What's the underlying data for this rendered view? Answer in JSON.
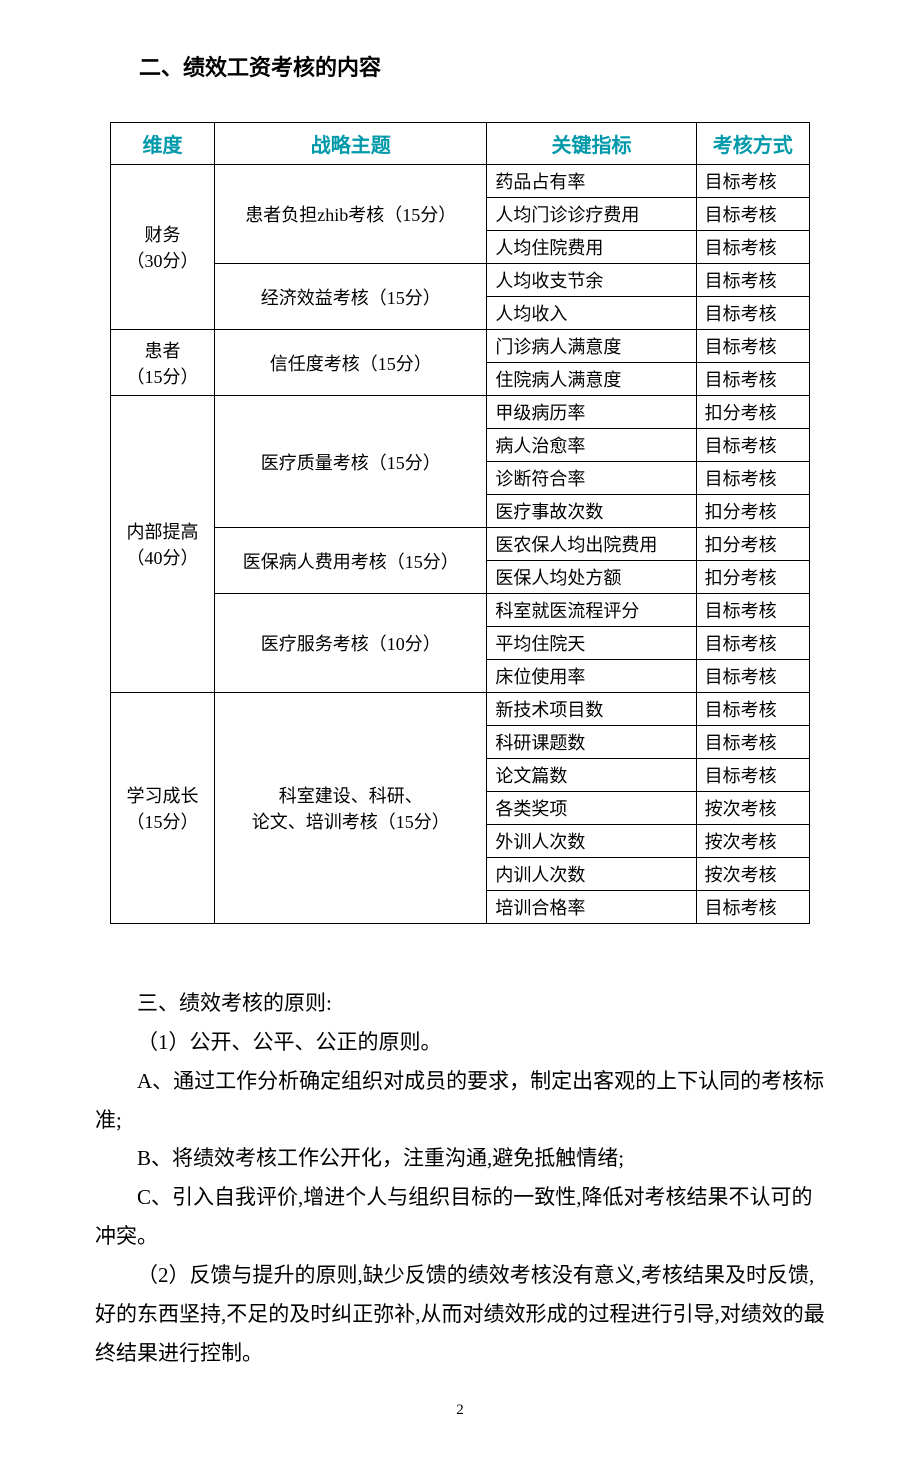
{
  "section2_title": "二、绩效工资考核的内容",
  "table": {
    "headers": [
      "维度",
      "战略主题",
      "关键指标",
      "考核方式"
    ],
    "header_color": "#0099aa",
    "groups": [
      {
        "dim": "财务\n（30分）",
        "themes": [
          {
            "theme": "患者负担zhib考核（15分）",
            "rows": [
              {
                "ind": "药品占有率",
                "mode": "目标考核"
              },
              {
                "ind": "人均门诊诊疗费用",
                "mode": "目标考核"
              },
              {
                "ind": "人均住院费用",
                "mode": "目标考核"
              }
            ]
          },
          {
            "theme": "经济效益考核（15分）",
            "rows": [
              {
                "ind": "人均收支节余",
                "mode": "目标考核"
              },
              {
                "ind": "人均收入",
                "mode": "目标考核"
              }
            ]
          }
        ]
      },
      {
        "dim": "患者\n（15分）",
        "themes": [
          {
            "theme": "信任度考核（15分）",
            "rows": [
              {
                "ind": "门诊病人满意度",
                "mode": "目标考核"
              },
              {
                "ind": "住院病人满意度",
                "mode": "目标考核"
              }
            ]
          }
        ]
      },
      {
        "dim": "内部提高\n（40分）",
        "themes": [
          {
            "theme": "医疗质量考核（15分）",
            "rows": [
              {
                "ind": "甲级病历率",
                "mode": "扣分考核"
              },
              {
                "ind": "病人治愈率",
                "mode": "目标考核"
              },
              {
                "ind": "诊断符合率",
                "mode": "目标考核"
              },
              {
                "ind": "医疗事故次数",
                "mode": "扣分考核"
              }
            ]
          },
          {
            "theme": "医保病人费用考核（15分）",
            "rows": [
              {
                "ind": "医农保人均出院费用",
                "mode": "扣分考核"
              },
              {
                "ind": "医保人均处方额",
                "mode": "扣分考核"
              }
            ]
          },
          {
            "theme": "医疗服务考核（10分）",
            "rows": [
              {
                "ind": "科室就医流程评分",
                "mode": "目标考核"
              },
              {
                "ind": "平均住院天",
                "mode": "目标考核"
              },
              {
                "ind": "床位使用率",
                "mode": "目标考核"
              }
            ]
          }
        ]
      },
      {
        "dim": "学习成长\n（15分）",
        "themes": [
          {
            "theme": "科室建设、科研、\n论文、培训考核（15分）",
            "rows": [
              {
                "ind": "新技术项目数",
                "mode": "目标考核"
              },
              {
                "ind": "科研课题数",
                "mode": "目标考核"
              },
              {
                "ind": "论文篇数",
                "mode": "目标考核"
              },
              {
                "ind": "各类奖项",
                "mode": "按次考核"
              },
              {
                "ind": "外训人次数",
                "mode": "按次考核"
              },
              {
                "ind": "内训人次数",
                "mode": "按次考核"
              },
              {
                "ind": "培训合格率",
                "mode": "目标考核"
              }
            ]
          }
        ]
      }
    ]
  },
  "section3_title": "三、绩效考核的原则:",
  "paragraphs": [
    "（1）公开、公平、公正的原则。",
    "A、通过工作分析确定组织对成员的要求，制定出客观的上下认同的考核标准;",
    "B、将绩效考核工作公开化，注重沟通,避免抵触情绪;",
    "C、引入自我评价,增进个人与组织目标的一致性,降低对考核结果不认可的冲突。",
    "（2）反馈与提升的原则,缺少反馈的绩效考核没有意义,考核结果及时反馈,好的东西坚持,不足的及时纠正弥补,从而对绩效形成的过程进行引导,对绩效的最终结果进行控制。"
  ],
  "para_indent": [
    true,
    true,
    true,
    true,
    true
  ],
  "para_hanging": [
    false,
    true,
    false,
    true,
    true
  ],
  "page_number": "2"
}
